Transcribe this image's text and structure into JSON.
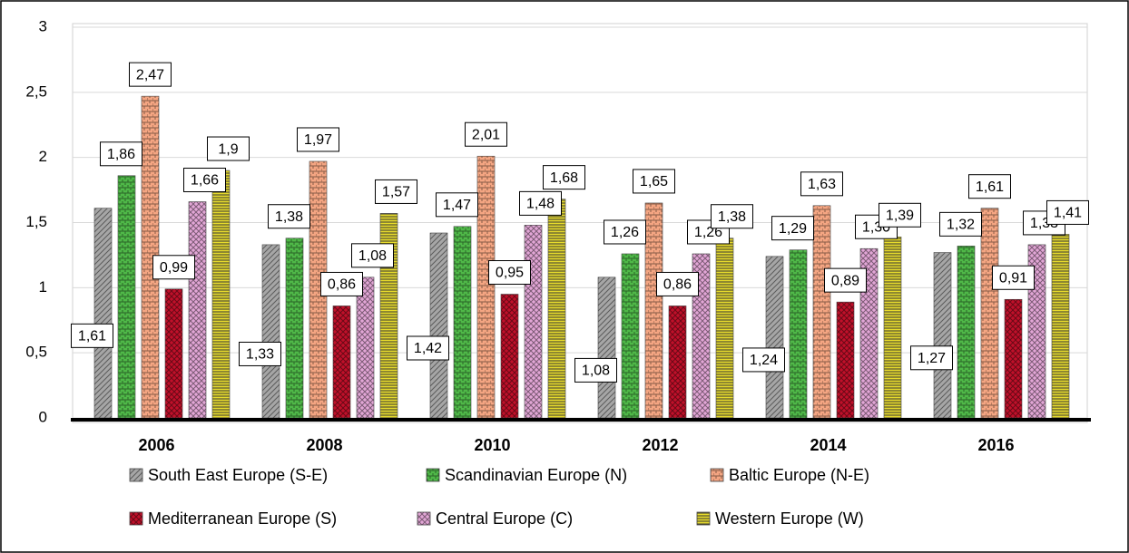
{
  "chart_data": {
    "type": "bar",
    "categories": [
      "2006",
      "2008",
      "2010",
      "2012",
      "2014",
      "2016"
    ],
    "series": [
      {
        "name": "South East Europe (S-E)",
        "color": "#a6a6a6",
        "values": [
          1.61,
          1.33,
          1.42,
          1.08,
          1.24,
          1.27
        ],
        "value_labels": [
          "1,61",
          "1,33",
          "1,42",
          "1,08",
          "1,24",
          "1,27"
        ]
      },
      {
        "name": "Scandinavian Europe (N)",
        "color": "#4fb848",
        "values": [
          1.86,
          1.38,
          1.47,
          1.26,
          1.29,
          1.32
        ],
        "value_labels": [
          "1,86",
          "1,38",
          "1,47",
          "1,26",
          "1,29",
          "1,32"
        ]
      },
      {
        "name": "Baltic Europe (N-E)",
        "color": "#f4a582",
        "values": [
          2.47,
          1.97,
          2.01,
          1.65,
          1.63,
          1.61
        ],
        "value_labels": [
          "2,47",
          "1,97",
          "2,01",
          "1,65",
          "1,63",
          "1,61"
        ]
      },
      {
        "name": "Mediterranean Europe (S)",
        "color": "#c0102a",
        "values": [
          0.99,
          0.86,
          0.95,
          0.86,
          0.89,
          0.91
        ],
        "value_labels": [
          "0,99",
          "0,86",
          "0,95",
          "0,86",
          "0,89",
          "0,91"
        ]
      },
      {
        "name": "Central Europe (C)",
        "color": "#e2a6d6",
        "values": [
          1.66,
          1.08,
          1.48,
          1.26,
          1.3,
          1.33
        ],
        "value_labels": [
          "1,66",
          "1,08",
          "1,48",
          "1,26",
          "1,30",
          "1,33"
        ]
      },
      {
        "name": "Western Europe (W)",
        "color": "#e8dc2c",
        "values": [
          1.9,
          1.57,
          1.68,
          1.38,
          1.39,
          1.41
        ],
        "value_labels": [
          "1,9",
          "1,57",
          "1,68",
          "1,38",
          "1,39",
          "1,41"
        ]
      }
    ],
    "ylim": [
      0,
      3
    ],
    "yticks": [
      0,
      {
        "value": 0.5,
        "label": "0,5"
      },
      1,
      {
        "value": 1.5,
        "label": "1,5"
      },
      2,
      {
        "value": 2.5,
        "label": "2,5"
      },
      3
    ],
    "grid": true,
    "legend": "bottom"
  }
}
